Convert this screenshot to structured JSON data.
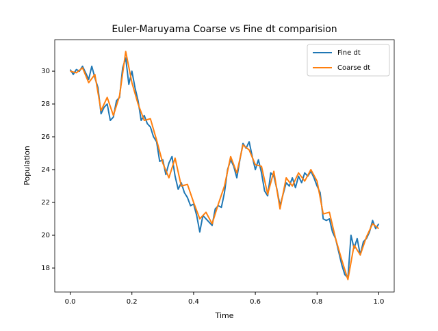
{
  "chart_data": {
    "type": "line",
    "title": "Euler-Maruyama Coarse vs Fine dt comparision",
    "xlabel": "Time",
    "ylabel": "Population",
    "xlim": [
      -0.05,
      1.05
    ],
    "ylim": [
      16.54,
      31.92
    ],
    "xticks": [
      {
        "value": 0,
        "label": "0.0"
      },
      0.2,
      0.4,
      0.6,
      0.8,
      {
        "value": 1,
        "label": "1.0"
      }
    ],
    "yticks": [
      18,
      20,
      22,
      24,
      26,
      28,
      30
    ],
    "legend": "upper right",
    "series": [
      {
        "name": "Fine dt",
        "color": "#1f77b4",
        "x": [
          0,
          0.01,
          0.02,
          0.03,
          0.04,
          0.05,
          0.06,
          0.07,
          0.08,
          0.09,
          0.1,
          0.11,
          0.12,
          0.13,
          0.14,
          0.15,
          0.16,
          0.17,
          0.18,
          0.19,
          0.2,
          0.21,
          0.22,
          0.23,
          0.24,
          0.25,
          0.26,
          0.27,
          0.28,
          0.29,
          0.3,
          0.31,
          0.32,
          0.33,
          0.34,
          0.35,
          0.36,
          0.37,
          0.38,
          0.39,
          0.4,
          0.41,
          0.42,
          0.43,
          0.44,
          0.45,
          0.46,
          0.47,
          0.48,
          0.49,
          0.5,
          0.51,
          0.52,
          0.53,
          0.54,
          0.55,
          0.56,
          0.57,
          0.58,
          0.59,
          0.6,
          0.61,
          0.62,
          0.63,
          0.64,
          0.65,
          0.66,
          0.67,
          0.68,
          0.69,
          0.7,
          0.71,
          0.72,
          0.73,
          0.74,
          0.75,
          0.76,
          0.77,
          0.78,
          0.79,
          0.8,
          0.81,
          0.82,
          0.83,
          0.84,
          0.85,
          0.86,
          0.87,
          0.88,
          0.89,
          0.9,
          0.91,
          0.92,
          0.93,
          0.94,
          0.95,
          0.96,
          0.97,
          0.98,
          0.99,
          1
        ],
        "values": [
          30.1,
          29.8,
          30.1,
          30.0,
          30.3,
          29.9,
          29.5,
          30.3,
          29.6,
          29.0,
          27.4,
          27.8,
          28.0,
          27.0,
          27.2,
          28.2,
          28.4,
          30.2,
          30.8,
          29.2,
          30.0,
          29.0,
          28.2,
          27.0,
          27.3,
          26.8,
          26.6,
          26.0,
          25.7,
          24.5,
          24.6,
          23.7,
          24.4,
          24.8,
          23.6,
          22.8,
          23.2,
          22.6,
          22.3,
          21.8,
          21.9,
          21.2,
          20.2,
          21.2,
          21.0,
          20.8,
          20.6,
          21.6,
          21.8,
          21.7,
          22.6,
          24.0,
          24.6,
          24.2,
          23.5,
          24.6,
          25.6,
          25.3,
          25.7,
          24.8,
          24.0,
          24.6,
          23.8,
          22.7,
          22.4,
          23.8,
          23.6,
          22.8,
          21.8,
          22.5,
          23.2,
          23.0,
          23.5,
          22.9,
          23.6,
          23.2,
          23.8,
          23.6,
          23.9,
          23.5,
          23.0,
          22.6,
          21.0,
          20.9,
          21.0,
          20.2,
          19.8,
          19.0,
          18.2,
          17.6,
          17.4,
          20.0,
          19.2,
          19.8,
          18.8,
          19.6,
          19.8,
          20.2,
          20.9,
          20.4,
          20.7
        ]
      },
      {
        "name": "Coarse dt",
        "color": "#ff7f0e",
        "x": [
          0,
          0.02,
          0.04,
          0.06,
          0.08,
          0.1,
          0.12,
          0.14,
          0.16,
          0.18,
          0.2,
          0.22,
          0.24,
          0.26,
          0.28,
          0.3,
          0.32,
          0.34,
          0.36,
          0.38,
          0.4,
          0.42,
          0.44,
          0.46,
          0.48,
          0.5,
          0.52,
          0.54,
          0.56,
          0.58,
          0.6,
          0.62,
          0.64,
          0.66,
          0.68,
          0.7,
          0.72,
          0.74,
          0.76,
          0.78,
          0.8,
          0.82,
          0.84,
          0.86,
          0.88,
          0.9,
          0.92,
          0.94,
          0.96,
          0.98,
          1
        ],
        "values": [
          30.0,
          29.9,
          30.2,
          29.3,
          29.8,
          27.6,
          28.4,
          27.3,
          28.5,
          31.2,
          29.3,
          28.0,
          27.0,
          27.1,
          25.8,
          24.4,
          23.5,
          24.7,
          23.0,
          23.1,
          22.0,
          21.0,
          21.4,
          20.7,
          21.9,
          23.0,
          24.8,
          23.8,
          25.5,
          25.2,
          24.3,
          24.2,
          22.5,
          23.9,
          21.6,
          23.5,
          23.0,
          23.8,
          23.3,
          24.0,
          23.3,
          21.3,
          21.4,
          19.8,
          18.5,
          17.3,
          19.4,
          18.8,
          19.9,
          20.7,
          20.4
        ]
      }
    ]
  }
}
